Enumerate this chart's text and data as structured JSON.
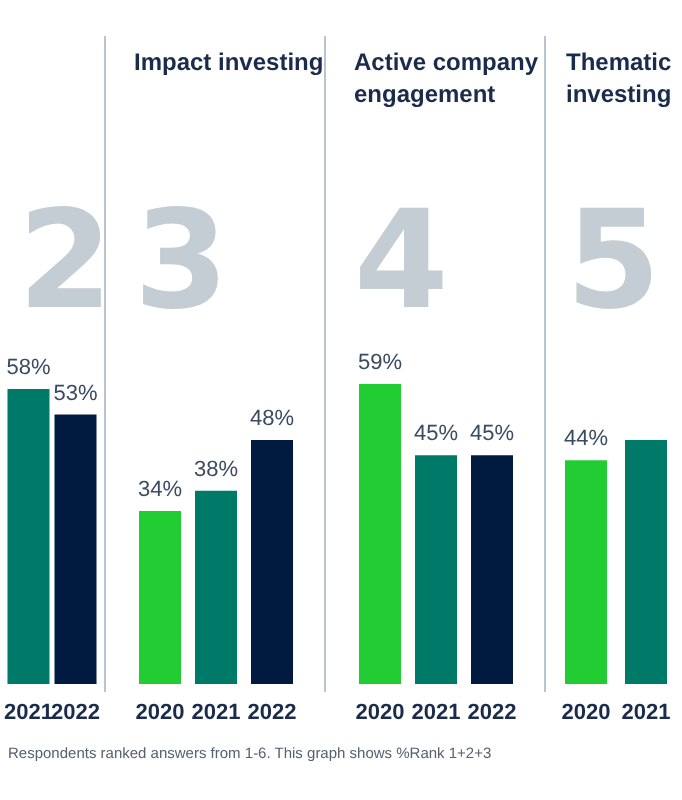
{
  "chart_data": [
    {
      "type": "bar",
      "subtitle": "2",
      "categories": [
        "2021",
        "2022"
      ],
      "values": [
        58,
        53
      ],
      "colors": [
        "#007a68",
        "#001a40"
      ],
      "value_labels": [
        "58%",
        "53%"
      ]
    },
    {
      "type": "bar",
      "title": "Impact investing",
      "subtitle": "3",
      "categories": [
        "2020",
        "2021",
        "2022"
      ],
      "values": [
        34,
        38,
        48
      ],
      "colors": [
        "#22cc33",
        "#007a68",
        "#001a40"
      ],
      "value_labels": [
        "34%",
        "38%",
        "48%"
      ],
      "annotations": [
        "Respondents ranked answers from 1-6. This graph shows %Rank 1+2+3"
      ]
    },
    {
      "type": "bar",
      "title": "Active company engagement",
      "subtitle": "4",
      "categories": [
        "2020",
        "2021",
        "2022"
      ],
      "values": [
        59,
        45,
        45
      ],
      "colors": [
        "#22cc33",
        "#007a68",
        "#001a40"
      ],
      "value_labels": [
        "59%",
        "45%",
        "45%"
      ]
    },
    {
      "type": "bar",
      "title": "Thematic investing",
      "subtitle": "5",
      "categories": [
        "2020",
        "2021"
      ],
      "values": [
        44,
        48
      ],
      "colors": [
        "#22cc33",
        "#007a68"
      ],
      "value_labels": [
        "44%",
        null
      ]
    }
  ]
}
